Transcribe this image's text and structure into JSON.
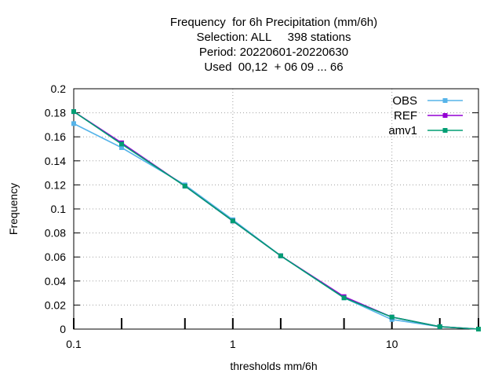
{
  "chart_data": {
    "type": "line",
    "title_lines": [
      "Frequency  for 6h Precipitation (mm/6h)",
      "Selection: ALL     398 stations",
      "Period: 20220601-20220630",
      "Used  00,12  + 06 09 ... 66"
    ],
    "xlabel": "thresholds mm/6h",
    "ylabel": "Frequency",
    "xscale": "log",
    "xlim": [
      0.1,
      35
    ],
    "ylim": [
      0,
      0.2
    ],
    "grid": true,
    "legend_position": "top-right",
    "x": [
      0.1,
      0.2,
      0.5,
      1,
      2,
      5,
      10,
      20,
      35
    ],
    "x_tick_labels": [
      {
        "value": 0.1,
        "label": "0.1"
      },
      {
        "value": 1,
        "label": "1"
      },
      {
        "value": 10,
        "label": "10"
      }
    ],
    "y_tick_labels": [
      {
        "value": 0,
        "label": "0"
      },
      {
        "value": 0.02,
        "label": "0.02"
      },
      {
        "value": 0.04,
        "label": "0.04"
      },
      {
        "value": 0.06,
        "label": "0.06"
      },
      {
        "value": 0.08,
        "label": "0.08"
      },
      {
        "value": 0.1,
        "label": "0.1"
      },
      {
        "value": 0.12,
        "label": "0.12"
      },
      {
        "value": 0.14,
        "label": "0.14"
      },
      {
        "value": 0.16,
        "label": "0.16"
      },
      {
        "value": 0.18,
        "label": "0.18"
      },
      {
        "value": 0.2,
        "label": "0.2"
      }
    ],
    "series": [
      {
        "name": "OBS",
        "color": "#56b4e9",
        "values": [
          0.171,
          0.151,
          0.12,
          0.091,
          0.061,
          0.026,
          0.008,
          0.002,
          0.0
        ]
      },
      {
        "name": "REF",
        "color": "#9400d3",
        "values": [
          0.181,
          0.155,
          0.119,
          0.09,
          0.061,
          0.027,
          0.01,
          0.002,
          0.0
        ]
      },
      {
        "name": "amv1",
        "color": "#009e73",
        "values": [
          0.181,
          0.154,
          0.119,
          0.09,
          0.061,
          0.026,
          0.01,
          0.002,
          0.0
        ]
      }
    ]
  }
}
